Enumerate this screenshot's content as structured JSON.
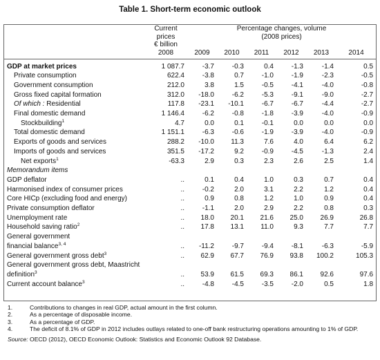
{
  "title": "Table 1. Short-term economic outlook",
  "header": {
    "current_prices": [
      "Current",
      "prices",
      "€ billion"
    ],
    "percentage_changes": [
      "Percentage changes, volume",
      "(2008 prices)"
    ],
    "years": [
      "2008",
      "2009",
      "2010",
      "2011",
      "2012",
      "2013",
      "2014"
    ]
  },
  "sections": [
    {
      "rows": [
        {
          "label": "GDP at market prices",
          "values": [
            "1 087.7",
            "-3.7",
            "-0.3",
            "0.4",
            "-1.3",
            "-1.4",
            "0.5"
          ]
        },
        {
          "label": "Private consumption",
          "values": [
            "622.4",
            "-3.8",
            "0.7",
            "-1.0",
            "-1.9",
            "-2.3",
            "-0.5"
          ]
        },
        {
          "label": "Government consumption",
          "values": [
            "212.0",
            "3.8",
            "1.5",
            "-0.5",
            "-4.1",
            "-4.0",
            "-0.8"
          ]
        },
        {
          "label": "Gross fixed capital formation",
          "values": [
            "312.0",
            "-18.0",
            "-6.2",
            "-5.3",
            "-9.1",
            "-9.0",
            "-2.7"
          ]
        },
        {
          "prefix": "Of which :",
          "label": "Residential",
          "values": [
            "117.8",
            "-23.1",
            "-10.1",
            "-6.7",
            "-6.7",
            "-4.4",
            "-2.7"
          ]
        },
        {
          "label": "Final domestic demand",
          "values": [
            "1 146.4",
            "-6.2",
            "-0.8",
            "-1.8",
            "-3.9",
            "-4.0",
            "-0.9"
          ]
        },
        {
          "label": "Stockbuilding",
          "sup": "1",
          "values": [
            "4.7",
            "0.0",
            "0.1",
            "-0.1",
            "0.0",
            "0.0",
            "0.0"
          ]
        },
        {
          "label": "Total domestic demand",
          "values": [
            "1 151.1",
            "-6.3",
            "-0.6",
            "-1.9",
            "-3.9",
            "-4.0",
            "-0.9"
          ]
        },
        {
          "label": "Exports of goods and services",
          "values": [
            "288.2",
            "-10.0",
            "11.3",
            "7.6",
            "4.0",
            "6.4",
            "6.2"
          ]
        },
        {
          "label": "Imports of goods and services",
          "values": [
            "351.5",
            "-17.2",
            "9.2",
            "-0.9",
            "-4.5",
            "-1.3",
            "2.4"
          ]
        },
        {
          "label": "Net exports",
          "sup": "1",
          "values": [
            "-63.3",
            "2.9",
            "0.3",
            "2.3",
            "2.6",
            "2.5",
            "1.4"
          ]
        }
      ]
    },
    {
      "heading": "Memorandum items",
      "rows": [
        {
          "label": "GDP deflator",
          "values": [
            "..",
            "0.1",
            "0.4",
            "1.0",
            "0.3",
            "0.7",
            "0.4"
          ]
        },
        {
          "label": "Harmonised index of consumer prices",
          "values": [
            "..",
            "-0.2",
            "2.0",
            "3.1",
            "2.2",
            "1.2",
            "0.4"
          ]
        },
        {
          "label": "Core HICp (excluding food and energy)",
          "values": [
            "..",
            "0.9",
            "0.8",
            "1.2",
            "1.0",
            "0.9",
            "0.4"
          ]
        },
        {
          "label": "Private consumption deflator",
          "values": [
            "..",
            "-1.1",
            "2.0",
            "2.9",
            "2.2",
            "0.8",
            "0.3"
          ]
        },
        {
          "label": "Unemployment rate",
          "values": [
            "..",
            "18.0",
            "20.1",
            "21.6",
            "25.0",
            "26.9",
            "26.8"
          ]
        },
        {
          "label": "Household saving ratio",
          "sup": "2",
          "values": [
            "..",
            "17.8",
            "13.1",
            "11.0",
            "9.3",
            "7.7",
            "7.7"
          ]
        },
        {
          "label": [
            "General government",
            "financial balance"
          ],
          "sup": "3, 4",
          "values": [
            "..",
            "-11.2",
            "-9.7",
            "-9.4",
            "-8.1",
            "-6.3",
            "-5.9"
          ]
        },
        {
          "label": "General government gross debt",
          "sup": "3",
          "values": [
            "..",
            "62.9",
            "67.7",
            "76.9",
            "93.8",
            "100.2",
            "105.3"
          ]
        },
        {
          "label": [
            "General government gross debt, Maastricht",
            "definition"
          ],
          "sup": "3",
          "values": [
            "..",
            "53.9",
            "61.5",
            "69.3",
            "86.1",
            "92.6",
            "97.6"
          ]
        },
        {
          "label": "Current account balance",
          "sup": "3",
          "values": [
            "..",
            "-4.8",
            "-4.5",
            "-3.5",
            "-2.0",
            "0.5",
            "1.8"
          ]
        }
      ]
    }
  ],
  "notes": [
    {
      "number": "1.",
      "text": "Contributions to changes in real GDP, actual amount in the first column."
    },
    {
      "number": "2.",
      "text": "As a percentage of disposable income."
    },
    {
      "number": "3.",
      "text": "As a percentage of GDP."
    },
    {
      "number": "4.",
      "text": "The deficit of 8.1% of GDP in 2012 includes outlays related to one-off bank restructuring operations amounting to 1% of GDP."
    }
  ],
  "source": {
    "label": "Source:",
    "text": "OECD (2012), OECD Economic Outlook: Statistics and Economic Outlook 92 Database."
  }
}
